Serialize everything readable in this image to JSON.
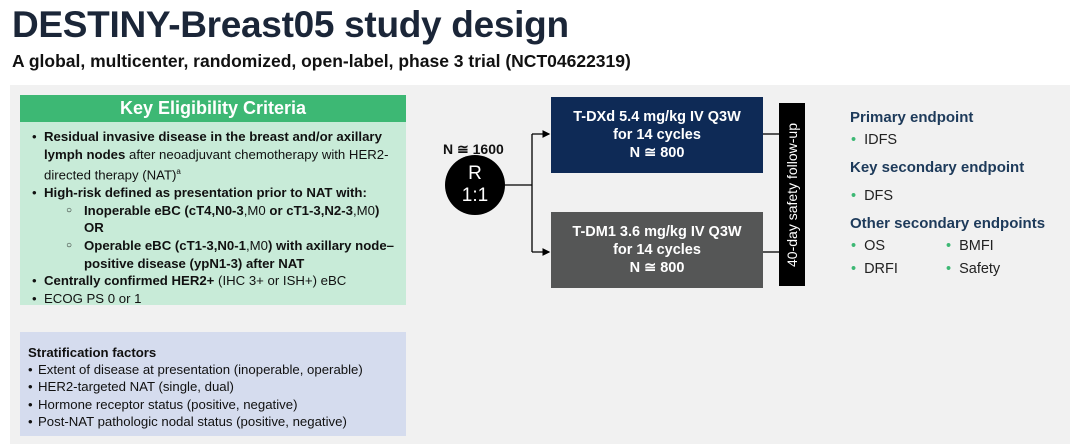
{
  "title": "DESTINY-Breast05 study design",
  "subtitle": "A global, multicenter, randomized, open-label, phase 3 trial (NCT04622319)",
  "eligibility": {
    "header": "Key Eligibility Criteria",
    "c1_bold": "Residual invasive disease in the breast and/or axillary lymph nodes",
    "c1_rest": " after neoadjuvant chemotherapy with HER2-directed therapy (NAT)",
    "c1_sup": "a",
    "c2": "High-risk defined as presentation prior to NAT with:",
    "c2a_1": "Inoperable eBC (cT4",
    "c2a_2": ",N0-3",
    "c2a_3": ",M0",
    "c2a_4": " or cT1-3,N2-3",
    "c2a_5": ",M0",
    "c2a_6": ")",
    "c2a_or": "OR",
    "c2b_1": "Operable eBC (cT1-3,N0-1",
    "c2b_2": ",M0",
    "c2b_3": ") with axillary node–positive disease (ypN1-3) after NAT",
    "c3_bold": "Centrally confirmed HER2+",
    "c3_rest": " (IHC 3+ or ISH+) eBC",
    "c4": "ECOG PS 0 or 1"
  },
  "stratification": {
    "header": "Stratification factors",
    "items": [
      "Extent of disease at presentation (inoperable, operable)",
      "HER2-targeted NAT (single, dual)",
      "Hormone receptor status (positive, negative)",
      "Post-NAT pathologic nodal status (positive, negative)"
    ]
  },
  "design": {
    "n_total": "N ≅ 1600",
    "rand_1": "R",
    "rand_2": "1:1",
    "arm1": {
      "line1": "T-DXd 5.4 mg/kg IV Q3W",
      "line2": "for 14 cycles",
      "line3": "N ≅ 800",
      "color": "#0e2a56"
    },
    "arm2": {
      "line1": "T-DM1 3.6 mg/kg IV Q3W",
      "line2": "for 14 cycles",
      "line3": "N ≅ 800",
      "color": "#555656"
    },
    "follow_up": "40-day safety follow-up"
  },
  "endpoints": {
    "primary_h": "Primary endpoint",
    "primary": [
      "IDFS"
    ],
    "key_h": "Key secondary endpoint",
    "key": [
      "DFS"
    ],
    "other_h": "Other secondary endpoints",
    "other": [
      "OS",
      "BMFI",
      "DRFI",
      "Safety"
    ]
  }
}
